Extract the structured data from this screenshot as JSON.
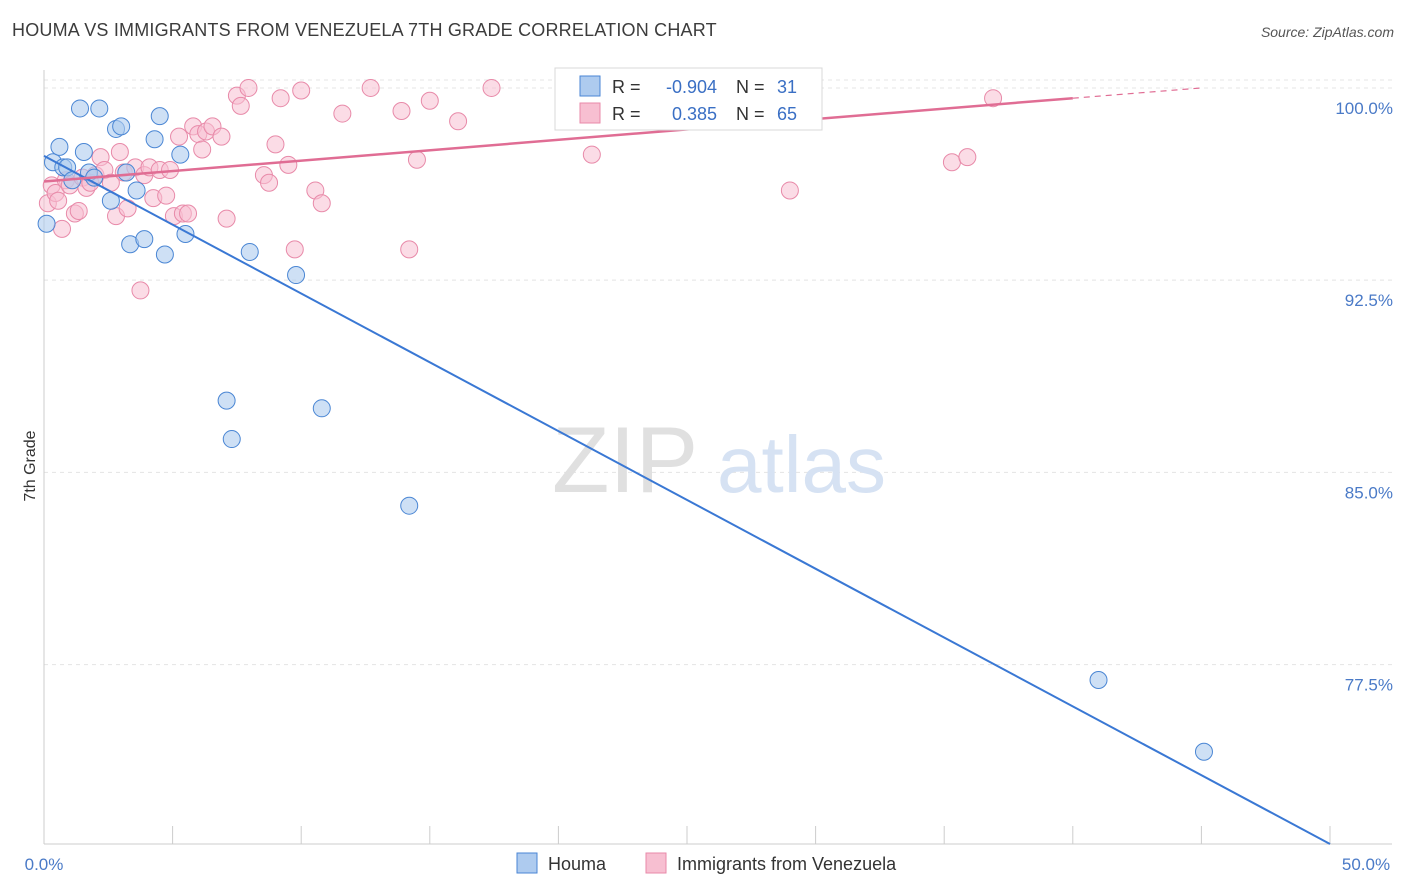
{
  "title": "HOUMA VS IMMIGRANTS FROM VENEZUELA 7TH GRADE CORRELATION CHART",
  "source": "Source: ZipAtlas.com",
  "watermark": {
    "zip": "ZIP",
    "atlas": "atlas"
  },
  "colors": {
    "houma_fill": "#aecbef",
    "houma_stroke": "#4a86d4",
    "houma_line": "#3a78d4",
    "venezuela_fill": "#f7bfd1",
    "venezuela_stroke": "#e88aa9",
    "venezuela_line": "#e06d94",
    "tick_label": "#4a7ac7",
    "grid": "#e4e4e4"
  },
  "legend_box": {
    "rows": [
      {
        "series": "Houma",
        "r_label": "R =",
        "r_value": "-0.904",
        "n_label": "N =",
        "n_value": "31"
      },
      {
        "series": "Immigrants from Venezuela",
        "r_label": "R =",
        "r_value": "0.385",
        "n_label": "N =",
        "n_value": "65"
      }
    ]
  },
  "chart_data": {
    "type": "scatter",
    "title": "HOUMA VS IMMIGRANTS FROM VENEZUELA 7TH GRADE CORRELATION CHART",
    "xlabel": "",
    "ylabel": "7th Grade",
    "xlim": [
      0,
      50
    ],
    "ylim": [
      70.5,
      100.7
    ],
    "x_tick_labels": [
      "0.0%",
      "50.0%"
    ],
    "y_ticks": [
      77.5,
      85.0,
      92.5,
      100.0
    ],
    "y_tick_labels": [
      "77.5%",
      "85.0%",
      "92.5%",
      "100.0%"
    ],
    "grid": "horizontal dashed",
    "legend_position": "bottom-center",
    "series": [
      {
        "name": "Houma",
        "R": -0.904,
        "N": 31,
        "trend": {
          "x": [
            0,
            50
          ],
          "y": [
            97.35,
            70.5
          ]
        },
        "points": [
          [
            0.1,
            94.7
          ],
          [
            0.35,
            97.1
          ],
          [
            0.6,
            97.7
          ],
          [
            0.75,
            96.9
          ],
          [
            0.9,
            96.9
          ],
          [
            1.1,
            96.4
          ],
          [
            1.4,
            99.2
          ],
          [
            1.55,
            97.5
          ],
          [
            1.75,
            96.7
          ],
          [
            1.95,
            96.5
          ],
          [
            2.15,
            99.2
          ],
          [
            2.6,
            95.6
          ],
          [
            2.8,
            98.4
          ],
          [
            3.0,
            98.5
          ],
          [
            3.2,
            96.7
          ],
          [
            3.35,
            93.9
          ],
          [
            3.6,
            96.0
          ],
          [
            3.9,
            94.1
          ],
          [
            4.3,
            98.0
          ],
          [
            4.5,
            98.9
          ],
          [
            4.7,
            93.5
          ],
          [
            5.3,
            97.4
          ],
          [
            5.5,
            94.3
          ],
          [
            7.1,
            87.8
          ],
          [
            7.3,
            86.3
          ],
          [
            8.0,
            93.6
          ],
          [
            9.8,
            92.7
          ],
          [
            10.8,
            87.5
          ],
          [
            14.2,
            83.7
          ],
          [
            41.0,
            76.9
          ],
          [
            45.1,
            74.1
          ]
        ]
      },
      {
        "name": "Immigrants from Venezuela",
        "R": 0.385,
        "N": 65,
        "trend": {
          "x": [
            0,
            40
          ],
          "y": [
            96.35,
            99.6
          ]
        },
        "trend_dashed": {
          "x": [
            40,
            45
          ],
          "y": [
            99.6,
            100.0
          ]
        },
        "points": [
          [
            0.15,
            95.5
          ],
          [
            0.3,
            96.2
          ],
          [
            0.45,
            95.9
          ],
          [
            0.55,
            95.6
          ],
          [
            0.7,
            94.5
          ],
          [
            0.85,
            96.4
          ],
          [
            1.0,
            96.2
          ],
          [
            1.2,
            95.1
          ],
          [
            1.35,
            95.2
          ],
          [
            1.5,
            96.5
          ],
          [
            1.65,
            96.1
          ],
          [
            1.8,
            96.3
          ],
          [
            2.0,
            96.6
          ],
          [
            2.2,
            97.3
          ],
          [
            2.35,
            96.8
          ],
          [
            2.6,
            96.3
          ],
          [
            2.8,
            95.0
          ],
          [
            2.95,
            97.5
          ],
          [
            3.1,
            96.7
          ],
          [
            3.25,
            95.3
          ],
          [
            3.55,
            96.9
          ],
          [
            3.75,
            92.1
          ],
          [
            3.9,
            96.6
          ],
          [
            4.1,
            96.9
          ],
          [
            4.25,
            95.7
          ],
          [
            4.5,
            96.8
          ],
          [
            4.75,
            95.8
          ],
          [
            4.9,
            96.8
          ],
          [
            5.05,
            95.0
          ],
          [
            5.25,
            98.1
          ],
          [
            5.4,
            95.1
          ],
          [
            5.6,
            95.1
          ],
          [
            5.8,
            98.5
          ],
          [
            6.0,
            98.2
          ],
          [
            6.15,
            97.6
          ],
          [
            6.3,
            98.3
          ],
          [
            6.55,
            98.5
          ],
          [
            6.9,
            98.1
          ],
          [
            7.1,
            94.9
          ],
          [
            7.5,
            99.7
          ],
          [
            7.65,
            99.3
          ],
          [
            7.95,
            100.0
          ],
          [
            8.55,
            96.6
          ],
          [
            8.75,
            96.3
          ],
          [
            9.0,
            97.8
          ],
          [
            9.2,
            99.6
          ],
          [
            9.5,
            97.0
          ],
          [
            9.75,
            93.7
          ],
          [
            10.0,
            99.9
          ],
          [
            10.55,
            96.0
          ],
          [
            10.8,
            95.5
          ],
          [
            11.6,
            99.0
          ],
          [
            12.7,
            100.0
          ],
          [
            13.9,
            99.1
          ],
          [
            14.2,
            93.7
          ],
          [
            14.5,
            97.2
          ],
          [
            15.0,
            99.5
          ],
          [
            16.1,
            98.7
          ],
          [
            17.4,
            100.0
          ],
          [
            20.2,
            99.9
          ],
          [
            21.3,
            97.4
          ],
          [
            29.0,
            96.0
          ],
          [
            35.3,
            97.1
          ],
          [
            35.9,
            97.3
          ],
          [
            36.9,
            99.6
          ]
        ]
      }
    ]
  }
}
